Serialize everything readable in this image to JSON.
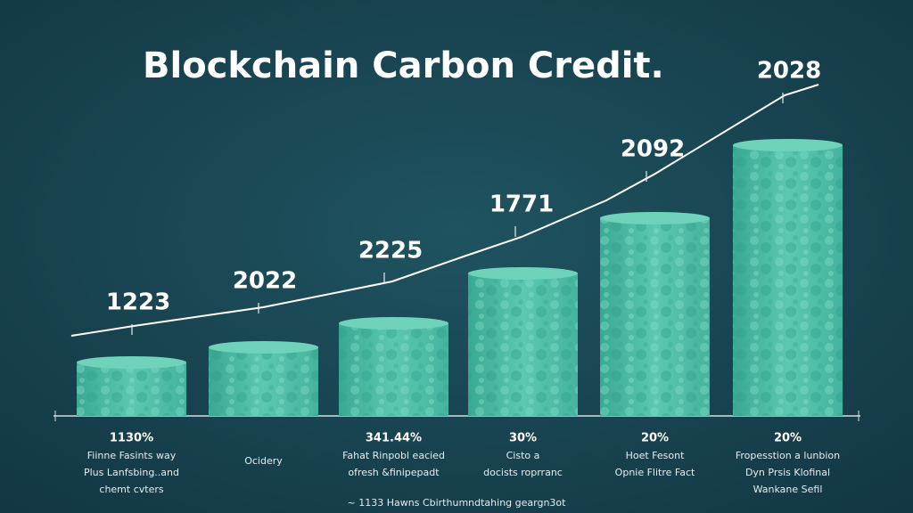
{
  "chart_data": {
    "type": "bar",
    "title": "Blockchain Carbon Credit.",
    "values": [
      60,
      77,
      104,
      160,
      222,
      304
    ],
    "ylim": [
      0,
      400
    ],
    "color": "#4cbba5",
    "top_labels": [
      "1223",
      "2022",
      "2225",
      "1771",
      "2092",
      "2028"
    ],
    "labels": [
      {
        "percent": "1130%",
        "lines": [
          "Fiinne Fasints way",
          "Plus Lanfsbing..and",
          "chemt cvters"
        ]
      },
      {
        "lines": [
          "Ocidery"
        ]
      },
      {
        "percent": "341.44%",
        "lines": [
          "Fahat Rinpobl eacied",
          "ofresh &finipepadt"
        ]
      },
      {
        "percent": "30%",
        "lines": [
          "Cisto a",
          "docists roprranc"
        ]
      },
      {
        "percent": "20%",
        "lines": [
          "Hoet Fesont",
          "Opnie Flitre Fact"
        ]
      },
      {
        "percent": "20%",
        "lines": [
          "Fropesstion a lunbion",
          "Dyn Prsis Klofinal",
          "Wankane Sefil"
        ]
      }
    ],
    "footer": "~ 1133 Hawns Cbirthumndtahing geargn3ot"
  }
}
